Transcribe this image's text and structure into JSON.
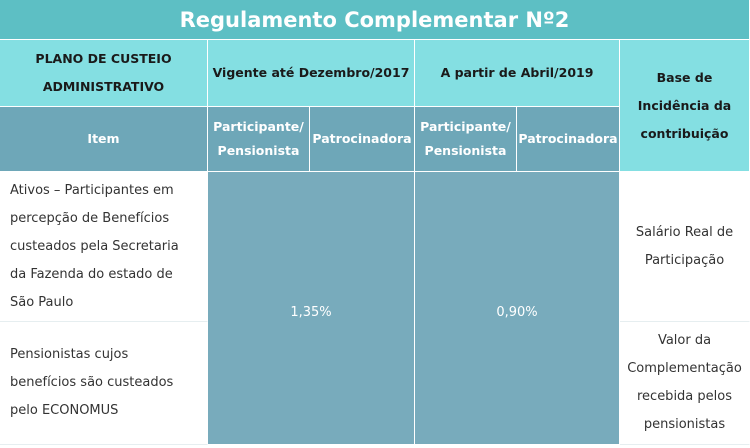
{
  "title": "Regulamento Complementar Nº2",
  "header": {
    "plan": "PLANO DE CUSTEIO ADMINISTRATIVO",
    "periods": [
      "Vigente até Dezembro/2017",
      "A partir de Abril/2019"
    ],
    "base": "Base de Incidência da contribuição"
  },
  "subheader": {
    "item": "Item",
    "columns": [
      "Participante/ Pensionista",
      "Patrocinadora",
      "Participante/ Pensionista",
      "Patrocinadora"
    ]
  },
  "rows": [
    {
      "item": "Ativos – Participantes em percepção de Benefícios custeados pela Secretaria da Fazenda do estado de São Paulo",
      "base": "Salário Real de Participação"
    },
    {
      "item": "Pensionistas cujos benefícios são custeados pelo ECONOMUS",
      "base": "Valor da Complementação recebida pelos pensionistas"
    }
  ],
  "values": [
    "1,35%",
    "0,90%"
  ]
}
